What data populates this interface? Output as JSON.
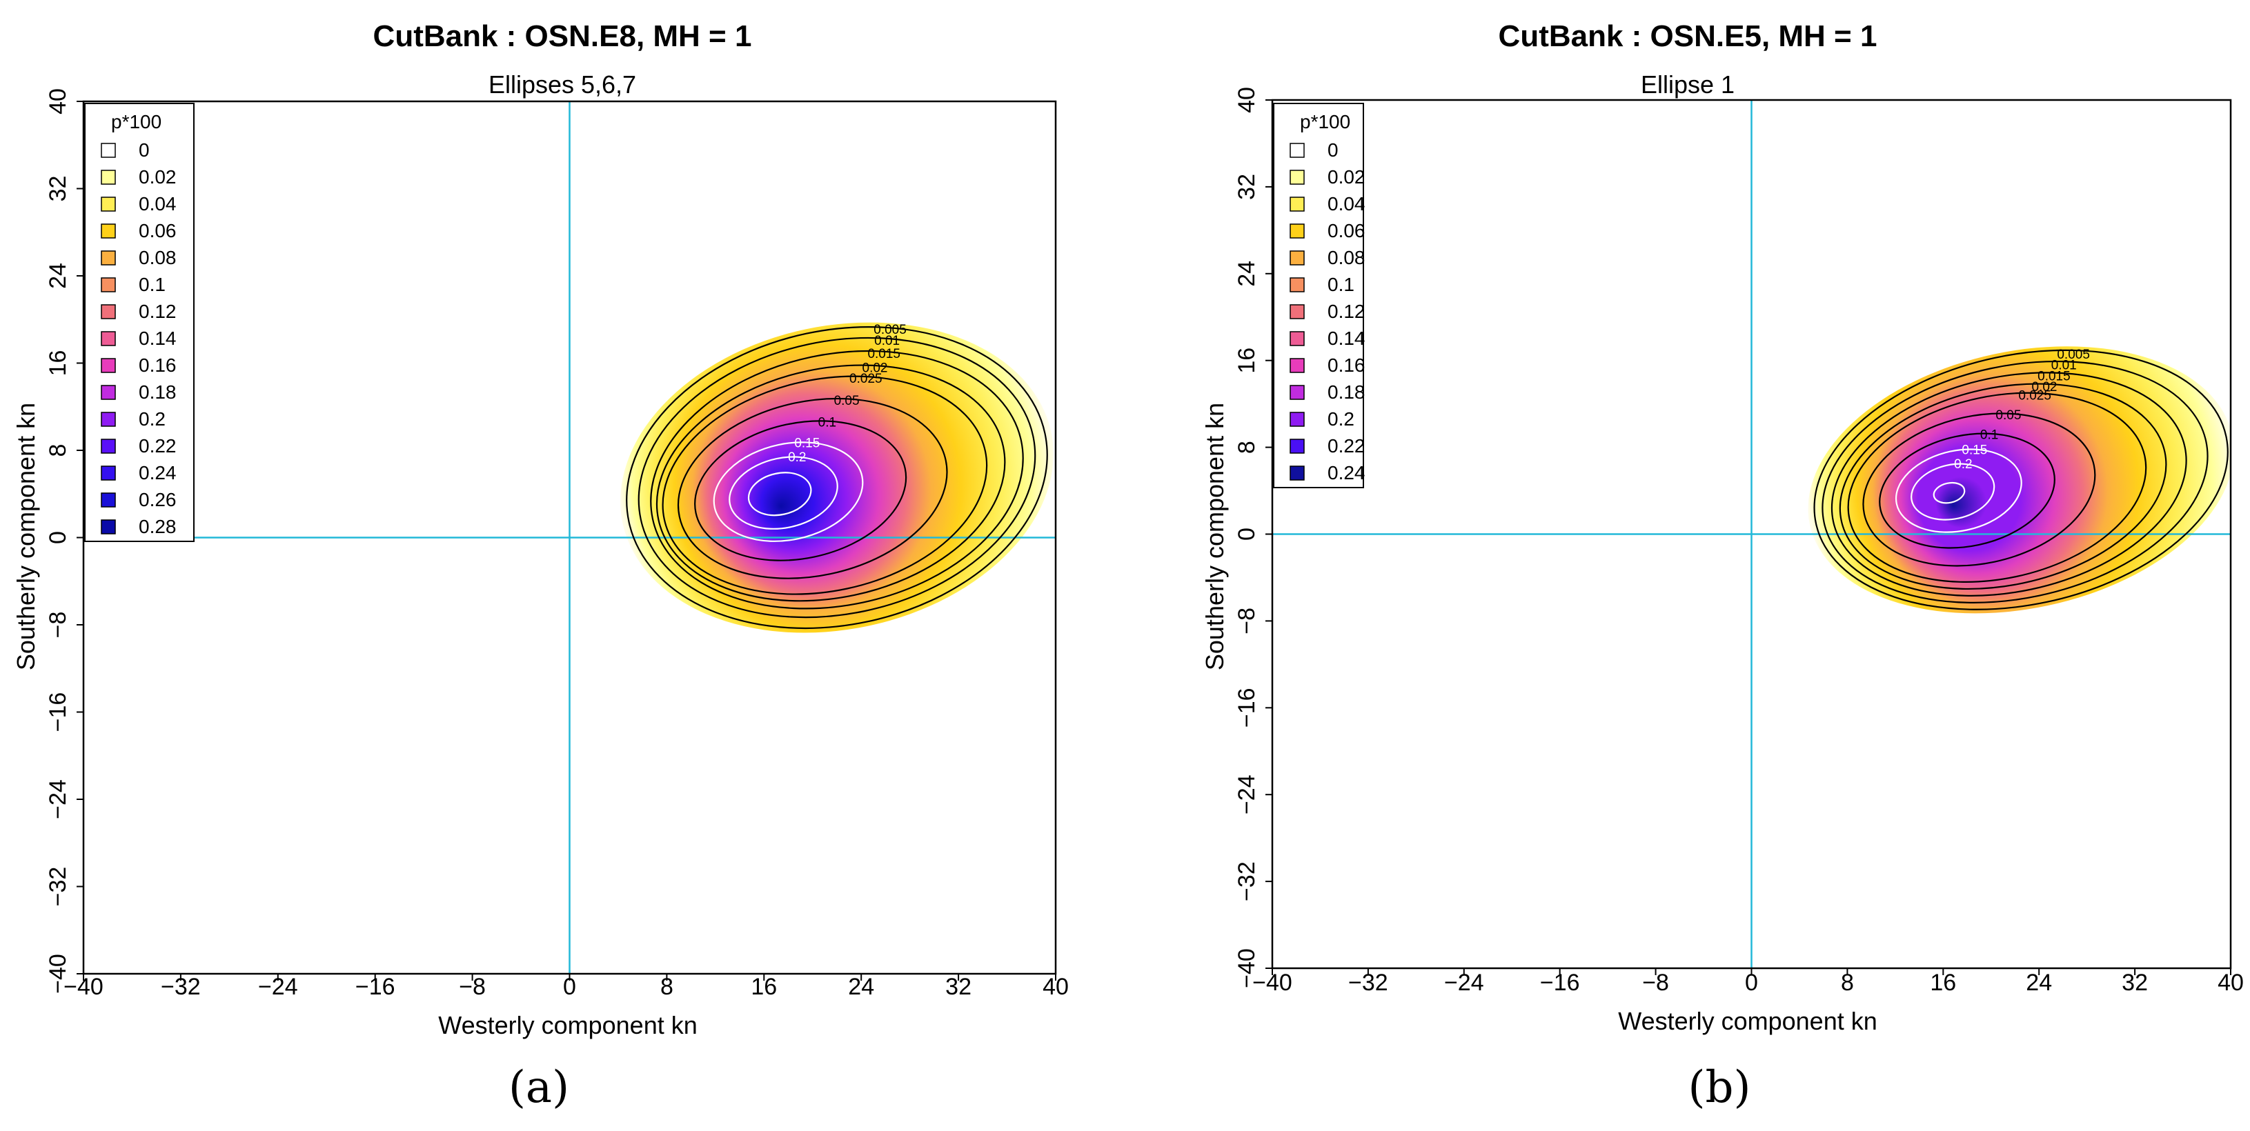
{
  "chart_data": [
    {
      "type": "heatmap",
      "panel_label": "(a)",
      "title": "CutBank : OSN.E8, MH = 1",
      "subtitle": "Ellipses 5,6,7",
      "xlabel": "Westerly component kn",
      "ylabel": "Southerly component kn",
      "xlim": [
        -40,
        40
      ],
      "ylim": [
        -40,
        40
      ],
      "x_ticks": [
        "−40",
        "−32",
        "−24",
        "−16",
        "−8",
        "0",
        "8",
        "16",
        "24",
        "32",
        "40"
      ],
      "y_ticks": [
        "−40",
        "−32",
        "−24",
        "−16",
        "−8",
        "0",
        "8",
        "16",
        "24",
        "32",
        "40"
      ],
      "reference_lines": {
        "x": 0,
        "y": 0,
        "color": "#22b8d8"
      },
      "legend": {
        "title": "p*100",
        "position": "top-left",
        "entries": [
          "0",
          "0.02",
          "0.04",
          "0.06",
          "0.08",
          "0.1",
          "0.12",
          "0.14",
          "0.16",
          "0.18",
          "0.2",
          "0.22",
          "0.24",
          "0.26",
          "0.28"
        ],
        "colors": [
          "#ffffff",
          "#ffff99",
          "#ffee55",
          "#ffd11a",
          "#fbb040",
          "#f79060",
          "#f0707a",
          "#ee5c95",
          "#e83cbb",
          "#c12ce0",
          "#8f1cf2",
          "#5a10f8",
          "#3410f0",
          "#1a10d8",
          "#0a0aa8"
        ]
      },
      "density_peak": {
        "x": 17,
        "y": 4,
        "max": 0.28
      },
      "black_contours": [
        {
          "level": "0.005",
          "label": "0.005",
          "cx": 22,
          "cy": 5.5,
          "rx": 17.5,
          "ry": 13.5
        },
        {
          "level": "0.01",
          "label": "0.01",
          "cx": 22,
          "cy": 5.5,
          "rx": 16.5,
          "ry": 12.5
        },
        {
          "level": "0.015",
          "label": "0.015",
          "cx": 22,
          "cy": 5.3,
          "rx": 15.5,
          "ry": 11.5
        },
        {
          "level": "0.02",
          "label": "0.02",
          "cx": 21.5,
          "cy": 5.0,
          "rx": 14.5,
          "ry": 10.5
        },
        {
          "level": "0.025",
          "label": "0.025",
          "cx": 21,
          "cy": 4.8,
          "rx": 13.5,
          "ry": 9.7
        },
        {
          "level": "0.05",
          "label": "0.05",
          "cx": 20,
          "cy": 4.5,
          "rx": 11.2,
          "ry": 8.0
        },
        {
          "level": "0.1",
          "label": "0.1",
          "cx": 19,
          "cy": 4.3,
          "rx": 8.8,
          "ry": 6.2
        }
      ],
      "white_contours": [
        {
          "level": "0.15",
          "label": "0.15",
          "cx": 18,
          "cy": 4.2,
          "rx": 6.2,
          "ry": 4.4
        },
        {
          "level": "0.2",
          "label": "0.2",
          "cx": 17.6,
          "cy": 4.1,
          "rx": 4.5,
          "ry": 3.2
        },
        {
          "level": "0.25",
          "label": "",
          "cx": 17.3,
          "cy": 4.0,
          "rx": 2.6,
          "ry": 1.9
        }
      ]
    },
    {
      "type": "heatmap",
      "panel_label": "(b)",
      "title": "CutBank : OSN.E5, MH = 1",
      "subtitle": "Ellipse 1",
      "xlabel": "Westerly component kn",
      "ylabel": "Southerly component kn",
      "xlim": [
        -40,
        40
      ],
      "ylim": [
        -40,
        40
      ],
      "x_ticks": [
        "−40",
        "−32",
        "−24",
        "−16",
        "−8",
        "0",
        "8",
        "16",
        "24",
        "32",
        "40"
      ],
      "y_ticks": [
        "−40",
        "−32",
        "−24",
        "−16",
        "−8",
        "0",
        "8",
        "16",
        "24",
        "32",
        "40"
      ],
      "reference_lines": {
        "x": 0,
        "y": 0,
        "color": "#22b8d8"
      },
      "legend": {
        "title": "p*100",
        "position": "top-left",
        "entries": [
          "0",
          "0.02",
          "0.04",
          "0.06",
          "0.08",
          "0.1",
          "0.12",
          "0.14",
          "0.16",
          "0.18",
          "0.2",
          "0.22",
          "0.24"
        ],
        "colors": [
          "#ffffff",
          "#ffff99",
          "#ffee55",
          "#ffd11a",
          "#fbb040",
          "#f79060",
          "#f0707a",
          "#ee5c95",
          "#e83cbb",
          "#c12ce0",
          "#8f1cf2",
          "#4a10f4",
          "#10109e"
        ]
      },
      "density_peak": {
        "x": 16.5,
        "y": 4,
        "max": 0.24
      },
      "black_contours": [
        {
          "level": "0.005",
          "label": "0.005",
          "cx": 22.5,
          "cy": 5.0,
          "rx": 17.5,
          "ry": 11.5
        },
        {
          "level": "0.01",
          "label": "0.01",
          "cx": 22,
          "cy": 4.8,
          "rx": 16.3,
          "ry": 10.7
        },
        {
          "level": "0.015",
          "label": "0.015",
          "cx": 21.5,
          "cy": 4.6,
          "rx": 15.0,
          "ry": 9.9
        },
        {
          "level": "0.02",
          "label": "0.02",
          "cx": 21,
          "cy": 4.4,
          "rx": 13.8,
          "ry": 9.1
        },
        {
          "level": "0.025",
          "label": "0.025",
          "cx": 20.5,
          "cy": 4.3,
          "rx": 12.6,
          "ry": 8.4
        },
        {
          "level": "0.05",
          "label": "0.05",
          "cx": 19,
          "cy": 4.1,
          "rx": 9.8,
          "ry": 6.8
        },
        {
          "level": "0.1",
          "label": "0.1",
          "cx": 18,
          "cy": 4.0,
          "rx": 7.4,
          "ry": 5.1
        }
      ],
      "white_contours": [
        {
          "level": "0.15",
          "label": "0.15",
          "cx": 17.3,
          "cy": 4.0,
          "rx": 5.3,
          "ry": 3.7
        },
        {
          "level": "0.2",
          "label": "0.2",
          "cx": 16.8,
          "cy": 3.9,
          "rx": 3.5,
          "ry": 2.5
        },
        {
          "level": "0.24",
          "label": "",
          "cx": 16.5,
          "cy": 3.8,
          "rx": 1.3,
          "ry": 0.9
        }
      ]
    }
  ]
}
